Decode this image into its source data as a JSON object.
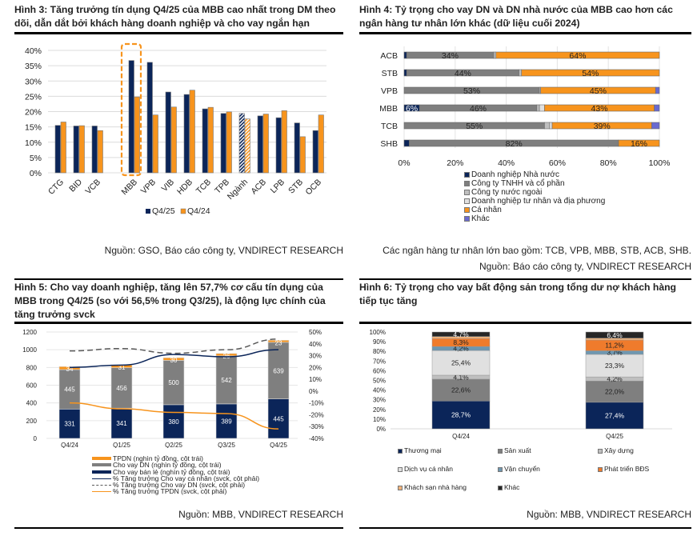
{
  "fig3": {
    "title": "Hình 3: Tăng trưởng tín dụng Q4/25 của MBB cao nhất trong DM theo dõi, dẫn dắt bởi khách hàng doanh nghiệp và cho vay ngắn hạn",
    "source": "Nguồn: GSO, Báo cáo công ty, VNDIRECT RESEARCH"
  },
  "fig4": {
    "title": "Hình 4: Tỷ trọng cho vay DN và DN nhà nước của MBB cao hơn các ngân hàng tư nhân lớn khác (dữ liệu cuối 2024)",
    "note": "Các ngân hàng tư nhân lớn bao gồm: TCB, VPB, MBB, STB, ACB, SHB.",
    "source": "Nguồn: Báo cáo công ty, VNDIRECT RESEARCH"
  },
  "fig5": {
    "title": "Hình 5: Cho vay doanh nghiệp, tăng lên 57,7% cơ cấu tín dụng của MBB trong Q4/25 (so với 56,5% trong Q3/25), là động lực chính của tăng trưởng svck",
    "source": "Nguồn: MBB, VNDIRECT RESEARCH"
  },
  "fig6": {
    "title": "Hình 6: Tỷ trọng cho vay bất động sản trong tổng dư nợ khách hàng tiếp tục tăng",
    "source": "Nguồn: MBB, VNDIRECT RESEARCH"
  },
  "colors": {
    "navy": "#0b2559",
    "orange": "#f7941d",
    "gray": "#7f7f7f",
    "lightgray": "#bfbfbf",
    "verylight": "#e0e0e0",
    "purple": "#6a6ad0",
    "blue_gray": "#6f97b0",
    "dark": "#262626",
    "peach": "#f0b27a",
    "bds_orange": "#ef7b2c"
  },
  "chart_data": [
    {
      "type": "bar",
      "title": "Hình 3",
      "categories": [
        "CTG",
        "BID",
        "VCB",
        "MBB",
        "VPB",
        "VIB",
        "HDB",
        "TCB",
        "TPB",
        "Ngành",
        "ACB",
        "LPB",
        "STB",
        "OCB"
      ],
      "series": [
        {
          "name": "Q4/25",
          "values": [
            15.5,
            15.3,
            15.3,
            36.7,
            36.1,
            26.4,
            25.6,
            20.9,
            19.4,
            19.4,
            18.6,
            18.0,
            16.3,
            13.8
          ]
        },
        {
          "name": "Q4/24",
          "values": [
            16.6,
            15.4,
            13.8,
            24.8,
            18.9,
            21.5,
            27.0,
            21.4,
            19.9,
            17.6,
            19.2,
            20.3,
            11.8,
            18.9
          ]
        }
      ],
      "yticks": [
        "0%",
        "5%",
        "10%",
        "15%",
        "20%",
        "25%",
        "30%",
        "35%",
        "40%"
      ],
      "ylim": [
        0,
        40
      ],
      "highlight": "MBB",
      "legend": [
        "Q4/25",
        "Q4/24"
      ],
      "legend_position": "bottom"
    },
    {
      "type": "bar",
      "title": "Hình 4",
      "orientation": "horizontal-stacked",
      "categories": [
        "ACB",
        "STB",
        "VPB",
        "MBB",
        "TCB",
        "SHB"
      ],
      "series": [
        {
          "name": "Doanh nghiệp Nhà nước",
          "values": [
            1,
            1,
            0,
            6,
            0,
            2
          ],
          "labels": [
            "",
            "",
            "",
            "6%",
            "",
            ""
          ]
        },
        {
          "name": "Công ty TNHH  và cổ phần",
          "values": [
            34,
            44,
            53,
            46,
            55,
            82
          ],
          "labels": [
            "34%",
            "44%",
            "53%",
            "46%",
            "55%",
            "82%"
          ]
        },
        {
          "name": "Công ty nước ngoài",
          "values": [
            0.5,
            1,
            0.5,
            1,
            2,
            0
          ],
          "labels": [
            "",
            "",
            "",
            "",
            "",
            ""
          ]
        },
        {
          "name": "Doanh nghiệp tư nhân và địa phương",
          "values": [
            0.5,
            0,
            0,
            2,
            1,
            0
          ],
          "labels": [
            "",
            "",
            "",
            "",
            "",
            ""
          ]
        },
        {
          "name": "Cá nhân",
          "values": [
            64,
            54,
            45,
            43,
            39,
            16
          ],
          "labels": [
            "64%",
            "54%",
            "45%",
            "43%",
            "39%",
            "16%"
          ]
        },
        {
          "name": "Khác",
          "values": [
            0,
            0,
            1.5,
            2,
            3,
            0
          ],
          "labels": [
            "",
            "",
            "",
            "",
            "",
            ""
          ]
        }
      ],
      "xticks": [
        "0%",
        "20%",
        "40%",
        "60%",
        "80%",
        "100%"
      ],
      "xlim": [
        0,
        100
      ],
      "legend_position": "bottom"
    },
    {
      "type": "bar",
      "title": "Hình 5",
      "categories": [
        "Q4/24",
        "Q1/25",
        "Q2/25",
        "Q3/25",
        "Q4/25"
      ],
      "series": [
        {
          "name": "Cho vay bán lẻ (nghìn tỷ đồng, cột trái)",
          "kind": "stacked-bar",
          "values": [
            331,
            341,
            380,
            389,
            445
          ]
        },
        {
          "name": "Cho vay DN (nghìn tỷ đồng, cột trái)",
          "kind": "stacked-bar",
          "values": [
            445,
            456,
            500,
            542,
            639
          ]
        },
        {
          "name": "TPDN (nghìn tỷ đồng, cột trái)",
          "kind": "stacked-bar",
          "values": [
            34,
            31,
            30,
            26,
            23
          ]
        },
        {
          "name": "% Tăng trưởng Cho vay cá nhân (svck, cột phải)",
          "kind": "line",
          "values": [
            20,
            22,
            31,
            29,
            35
          ]
        },
        {
          "name": "% Tăng trưởng Cho vay DN (svck, cột phải)",
          "kind": "dashed-line",
          "values": [
            34,
            36,
            32,
            35,
            44
          ]
        },
        {
          "name": "% Tăng trưởng TPDN (svck, cột phải)",
          "kind": "line",
          "values": [
            -10,
            -15,
            -18,
            -19,
            -32
          ]
        }
      ],
      "legend_order": [
        "TPDN (nghìn tỷ đồng, cột trái)",
        "Cho vay DN (nghìn tỷ đồng, cột trái)",
        "Cho vay bán lẻ (nghìn tỷ đồng, cột trái)",
        "% Tăng trưởng Cho vay cá nhân (svck, cột phải)",
        "% Tăng trưởng Cho vay DN (svck, cột phải)",
        "% Tăng trưởng TPDN (svck, cột phải)"
      ],
      "yticks_left": [
        "0",
        "200",
        "400",
        "600",
        "800",
        "1000",
        "1200"
      ],
      "ylim_left": [
        0,
        1200
      ],
      "yticks_right": [
        "-40%",
        "-30%",
        "-20%",
        "-10%",
        "0%",
        "10%",
        "20%",
        "30%",
        "40%",
        "50%"
      ],
      "ylim_right": [
        -40,
        50
      ],
      "legend_position": "bottom"
    },
    {
      "type": "bar",
      "title": "Hình 6",
      "orientation": "vertical-stacked-100",
      "categories": [
        "Q4/24",
        "Q4/25"
      ],
      "series": [
        {
          "name": "Thương mại",
          "values": [
            28.7,
            27.4
          ],
          "labels": [
            "28,7%",
            "27,4%"
          ]
        },
        {
          "name": "Sản xuất",
          "values": [
            22.6,
            22.0
          ],
          "labels": [
            "22,6%",
            "22,0%"
          ]
        },
        {
          "name": "Xây dựng",
          "values": [
            4.1,
            4.2
          ],
          "labels": [
            "4,1%",
            "4,2%"
          ]
        },
        {
          "name": "Dịch vụ cá nhân",
          "values": [
            25.4,
            23.3
          ],
          "labels": [
            "25,4%",
            "23,3%"
          ]
        },
        {
          "name": "Vận chuyển",
          "values": [
            4.2,
            3.7
          ],
          "labels": [
            "4,2%",
            "3,7%"
          ]
        },
        {
          "name": "Phát triển BĐS",
          "values": [
            8.3,
            11.2
          ],
          "labels": [
            "8,3%",
            "11,2%"
          ]
        },
        {
          "name": "Khách sạn nhà hàng",
          "values": [
            2.0,
            1.8
          ],
          "labels": [
            "",
            ""
          ]
        },
        {
          "name": "Khác",
          "values": [
            4.7,
            6.4
          ],
          "labels": [
            "4,7%",
            "6,4%"
          ]
        }
      ],
      "yticks": [
        "0%",
        "10%",
        "20%",
        "30%",
        "40%",
        "50%",
        "60%",
        "70%",
        "80%",
        "90%",
        "100%"
      ],
      "ylim": [
        0,
        100
      ],
      "legend_position": "bottom"
    }
  ]
}
